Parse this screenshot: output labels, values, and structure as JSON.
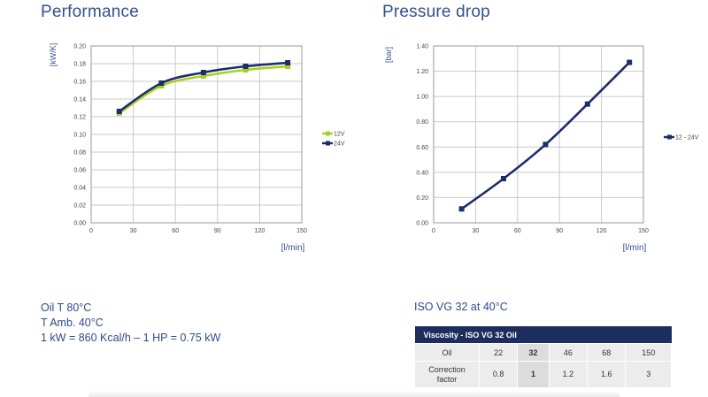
{
  "performance": {
    "title": "Performance",
    "ylabel": "[kW/K]",
    "xlabel": "[l/min]"
  },
  "pressure": {
    "title": "Pressure drop",
    "ylabel": "[bar]",
    "xlabel": "[l/min]"
  },
  "notes": {
    "line1": "Oil T 80°C",
    "line2": "T Amb. 40°C",
    "line3": "1 kW = 860 Kcal/h – 1 HP = 0.75 kW"
  },
  "viscosity": {
    "note": "ISO VG 32 at 40°C",
    "table_title": "Viscosity - ISO VG 32 Oil",
    "row1_label": "Oil",
    "row1_values": [
      "22",
      "32",
      "46",
      "68",
      "150"
    ],
    "row2_label_1": "Correction",
    "row2_label_2": "factor",
    "row2_values": [
      "0.8",
      "1",
      "1.2",
      "1.6",
      "3"
    ],
    "highlight_index": 1
  },
  "chart_data": [
    {
      "type": "line",
      "title": "Performance",
      "xlabel": "[l/min]",
      "ylabel": "[kW/K]",
      "xlim": [
        0,
        150
      ],
      "ylim": [
        0,
        0.2
      ],
      "xticks": [
        "0",
        "30",
        "60",
        "90",
        "120",
        "150"
      ],
      "yticks": [
        "0.00",
        "0.02",
        "0.04",
        "0.06",
        "0.08",
        "0.10",
        "0.12",
        "0.14",
        "0.16",
        "0.18",
        "0.20"
      ],
      "grid": true,
      "legend": "right",
      "series": [
        {
          "name": "12V",
          "color": "#a6d121",
          "x": [
            20,
            50,
            80,
            110,
            140
          ],
          "y": [
            0.124,
            0.155,
            0.166,
            0.173,
            0.177
          ]
        },
        {
          "name": "24V",
          "color": "#1c2d6b",
          "x": [
            20,
            50,
            80,
            110,
            140
          ],
          "y": [
            0.126,
            0.158,
            0.17,
            0.177,
            0.181
          ]
        }
      ]
    },
    {
      "type": "line",
      "title": "Pressure drop",
      "xlabel": "[l/min]",
      "ylabel": "[bar]",
      "xlim": [
        0,
        150
      ],
      "ylim": [
        0,
        1.4
      ],
      "xticks": [
        "0",
        "30",
        "60",
        "90",
        "120",
        "150"
      ],
      "yticks": [
        "0.00",
        "0.20",
        "0.40",
        "0.60",
        "0.80",
        "1.00",
        "1.20",
        "1.40"
      ],
      "grid": true,
      "legend": "right",
      "series": [
        {
          "name": "12 - 24V",
          "color": "#1c2d6b",
          "x": [
            20,
            50,
            80,
            110,
            140
          ],
          "y": [
            0.11,
            0.35,
            0.62,
            0.94,
            1.27
          ]
        }
      ]
    }
  ]
}
